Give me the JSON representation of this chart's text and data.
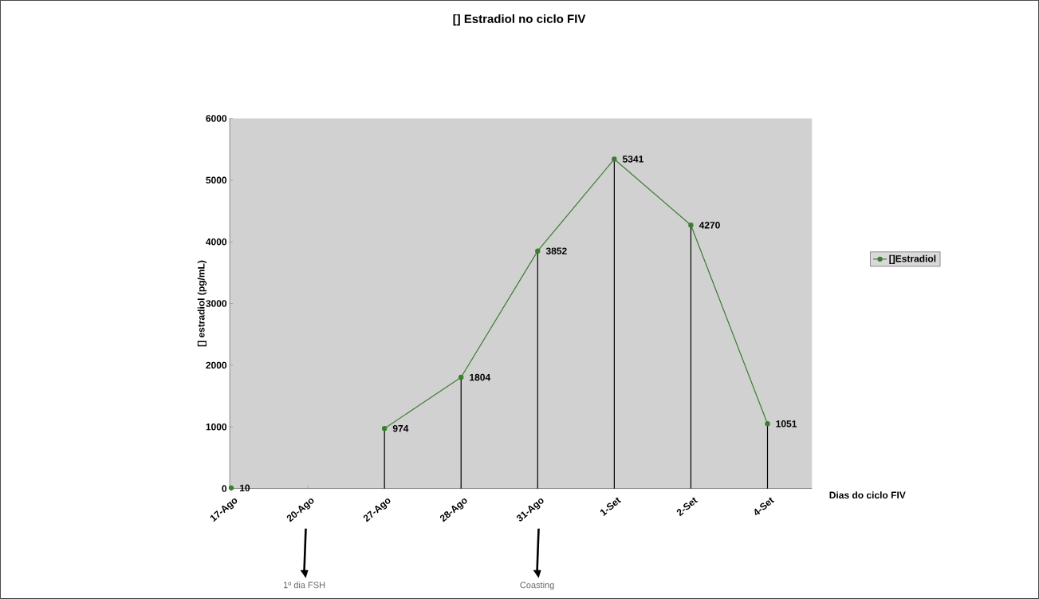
{
  "chart_data": {
    "type": "line",
    "title": "[] Estradiol no ciclo FIV",
    "xlabel": "Dias do ciclo FIV",
    "ylabel": "[] estradiol (pg/mL)",
    "categories": [
      "17-Ago",
      "20-Ago",
      "27-Ago",
      "28-Ago",
      "31-Ago",
      "1-Set",
      "2-Set",
      "4-Set"
    ],
    "series": [
      {
        "name": "[]Estradiol",
        "color": "#3c7d32",
        "values": [
          10,
          null,
          974,
          1804,
          3852,
          5341,
          4270,
          1051
        ]
      }
    ],
    "ylim": [
      0,
      6000
    ],
    "yticks": [
      0,
      1000,
      2000,
      3000,
      4000,
      5000,
      6000
    ],
    "marker": "circle",
    "data_labels": true,
    "legend": "right",
    "annotations": [
      "1º dia FSH",
      "Coasting"
    ]
  }
}
